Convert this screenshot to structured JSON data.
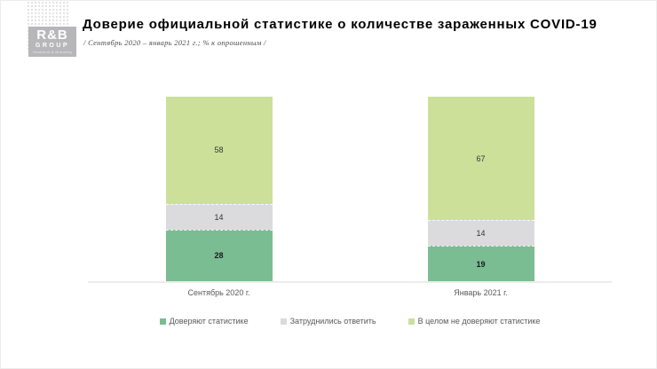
{
  "logo": {
    "name": "R&B",
    "group": "GROUP",
    "tagline": "Research & Branding"
  },
  "header": {
    "title": "Доверие официальной статистике о количестве зараженных COVID-19",
    "subtitle": "/ Сентябрь 2020 – январь 2021 г.; % к опрошенным /"
  },
  "colors": {
    "axis_line": "#ececec",
    "data_label_text": "#333333",
    "muted_text": "#595959"
  },
  "chart_data": {
    "type": "bar",
    "stacked": true,
    "title": "Доверие официальной статистике о количестве зараженных COVID-19",
    "categories": [
      "Сентябрь 2020 г.",
      "Январь 2021 г."
    ],
    "series": [
      {
        "name": "Доверяют статистике",
        "values": [
          28,
          19
        ],
        "color": "#7abd92",
        "bold_labels": true
      },
      {
        "name": "Затруднились  ответить",
        "values": [
          14,
          14
        ],
        "color": "#dbdbdd",
        "bold_labels": false
      },
      {
        "name": "В целом не  доверяют статистике",
        "values": [
          58,
          67
        ],
        "color": "#cce09a",
        "bold_labels": false
      }
    ],
    "ylim": [
      0,
      100
    ],
    "unit": "%",
    "grid": false,
    "value_labels": true,
    "legend_position": "bottom"
  }
}
